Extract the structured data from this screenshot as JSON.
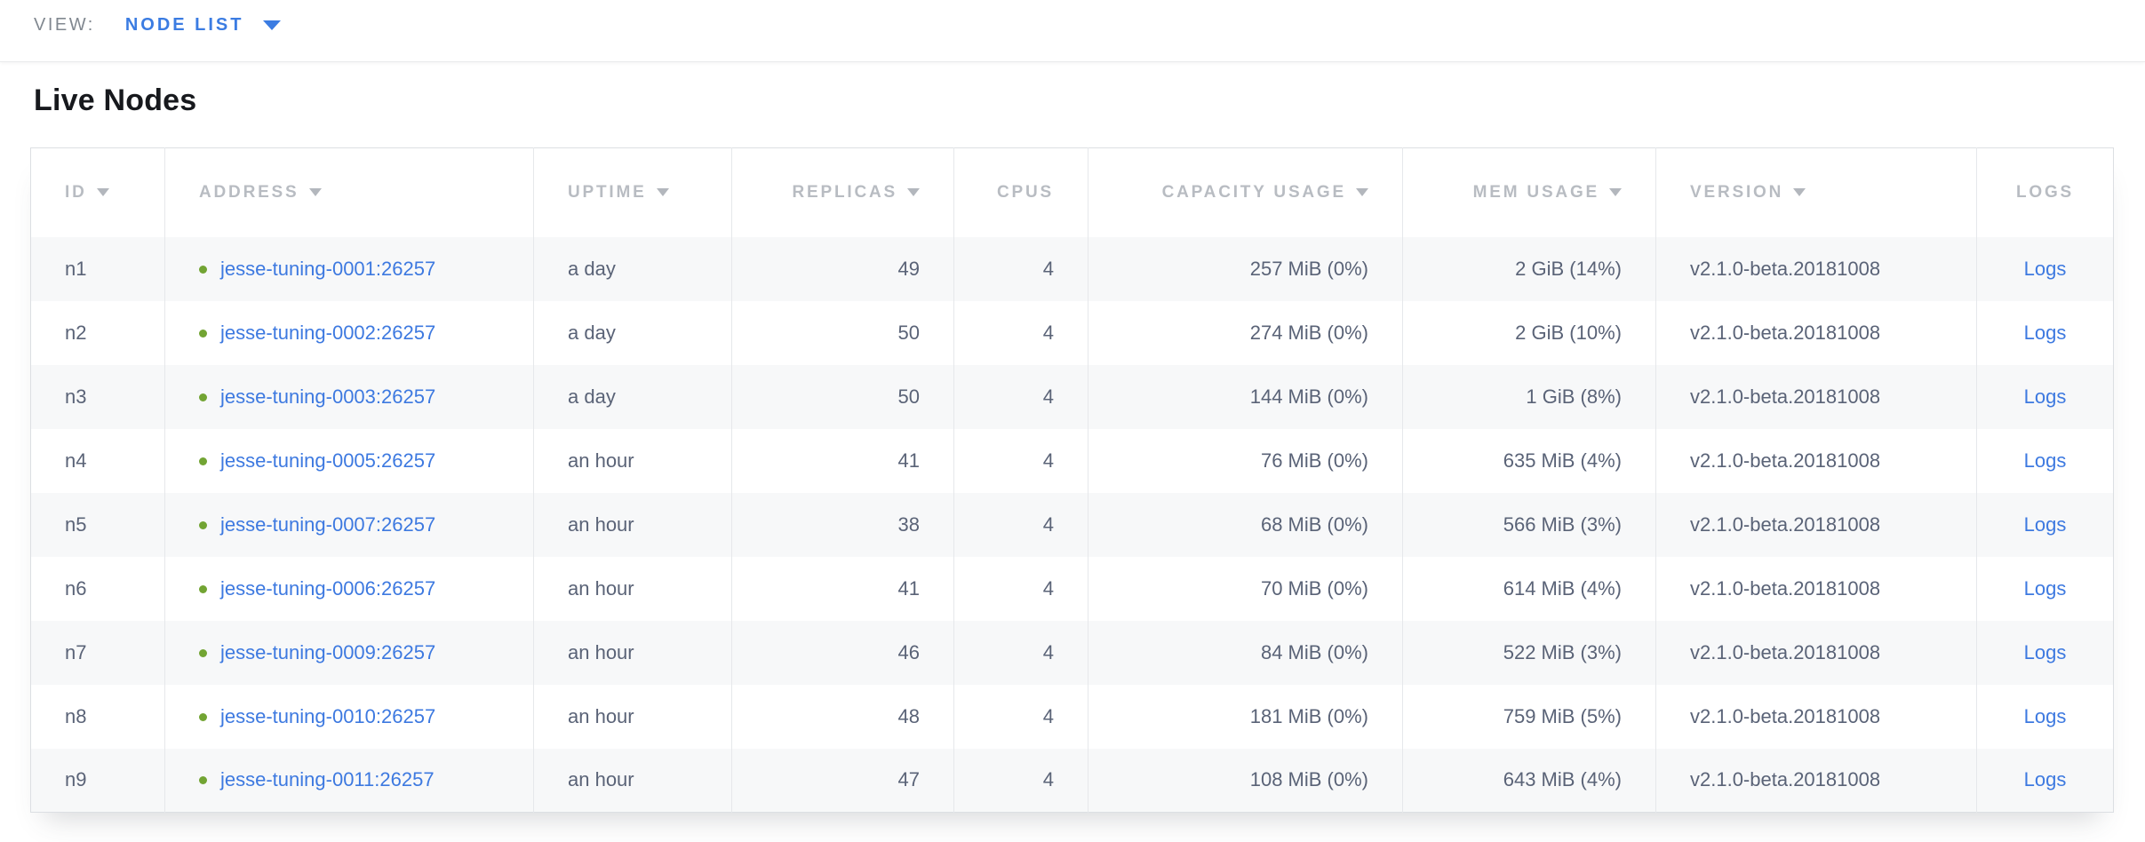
{
  "view_bar": {
    "label": "VIEW:",
    "selected_view": "NODE LIST",
    "caret_icon": "caret-down-icon"
  },
  "page": {
    "title": "Live Nodes"
  },
  "colors": {
    "accent_blue": "#3b7ce2",
    "link_blue": "#3d79e0",
    "healthy_green": "#72a433",
    "header_text_gray": "#b8bcc2",
    "cell_text_slate": "#5a6377",
    "row_stripe_gray": "#f7f8f9"
  },
  "table": {
    "columns": [
      {
        "key": "id",
        "label": "ID",
        "sortable": true,
        "align": "left"
      },
      {
        "key": "address",
        "label": "ADDRESS",
        "sortable": true,
        "align": "left"
      },
      {
        "key": "uptime",
        "label": "UPTIME",
        "sortable": true,
        "align": "left"
      },
      {
        "key": "replicas",
        "label": "REPLICAS",
        "sortable": true,
        "align": "right"
      },
      {
        "key": "cpus",
        "label": "CPUS",
        "sortable": false,
        "align": "right"
      },
      {
        "key": "capacity",
        "label": "CAPACITY USAGE",
        "sortable": true,
        "align": "right"
      },
      {
        "key": "mem",
        "label": "MEM USAGE",
        "sortable": true,
        "align": "right"
      },
      {
        "key": "version",
        "label": "VERSION",
        "sortable": true,
        "align": "left"
      },
      {
        "key": "logs",
        "label": "LOGS",
        "sortable": false,
        "align": "center"
      }
    ],
    "rows": [
      {
        "id": "n1",
        "status": "healthy",
        "address": "jesse-tuning-0001:26257",
        "uptime": "a day",
        "replicas": "49",
        "cpus": "4",
        "capacity": "257 MiB (0%)",
        "mem": "2 GiB (14%)",
        "version": "v2.1.0-beta.20181008",
        "logs": "Logs"
      },
      {
        "id": "n2",
        "status": "healthy",
        "address": "jesse-tuning-0002:26257",
        "uptime": "a day",
        "replicas": "50",
        "cpus": "4",
        "capacity": "274 MiB (0%)",
        "mem": "2 GiB (10%)",
        "version": "v2.1.0-beta.20181008",
        "logs": "Logs"
      },
      {
        "id": "n3",
        "status": "healthy",
        "address": "jesse-tuning-0003:26257",
        "uptime": "a day",
        "replicas": "50",
        "cpus": "4",
        "capacity": "144 MiB (0%)",
        "mem": "1 GiB (8%)",
        "version": "v2.1.0-beta.20181008",
        "logs": "Logs"
      },
      {
        "id": "n4",
        "status": "healthy",
        "address": "jesse-tuning-0005:26257",
        "uptime": "an hour",
        "replicas": "41",
        "cpus": "4",
        "capacity": "76 MiB (0%)",
        "mem": "635 MiB (4%)",
        "version": "v2.1.0-beta.20181008",
        "logs": "Logs"
      },
      {
        "id": "n5",
        "status": "healthy",
        "address": "jesse-tuning-0007:26257",
        "uptime": "an hour",
        "replicas": "38",
        "cpus": "4",
        "capacity": "68 MiB (0%)",
        "mem": "566 MiB (3%)",
        "version": "v2.1.0-beta.20181008",
        "logs": "Logs"
      },
      {
        "id": "n6",
        "status": "healthy",
        "address": "jesse-tuning-0006:26257",
        "uptime": "an hour",
        "replicas": "41",
        "cpus": "4",
        "capacity": "70 MiB (0%)",
        "mem": "614 MiB (4%)",
        "version": "v2.1.0-beta.20181008",
        "logs": "Logs"
      },
      {
        "id": "n7",
        "status": "healthy",
        "address": "jesse-tuning-0009:26257",
        "uptime": "an hour",
        "replicas": "46",
        "cpus": "4",
        "capacity": "84 MiB (0%)",
        "mem": "522 MiB (3%)",
        "version": "v2.1.0-beta.20181008",
        "logs": "Logs"
      },
      {
        "id": "n8",
        "status": "healthy",
        "address": "jesse-tuning-0010:26257",
        "uptime": "an hour",
        "replicas": "48",
        "cpus": "4",
        "capacity": "181 MiB (0%)",
        "mem": "759 MiB (5%)",
        "version": "v2.1.0-beta.20181008",
        "logs": "Logs"
      },
      {
        "id": "n9",
        "status": "healthy",
        "address": "jesse-tuning-0011:26257",
        "uptime": "an hour",
        "replicas": "47",
        "cpus": "4",
        "capacity": "108 MiB (0%)",
        "mem": "643 MiB (4%)",
        "version": "v2.1.0-beta.20181008",
        "logs": "Logs"
      }
    ]
  }
}
